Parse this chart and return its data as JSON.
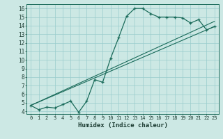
{
  "title": "",
  "xlabel": "Humidex (Indice chaleur)",
  "bg_color": "#cce8e4",
  "line_color": "#1a6b5a",
  "grid_color": "#99cccc",
  "xlim": [
    -0.5,
    23.5
  ],
  "ylim": [
    3.7,
    16.5
  ],
  "xticks": [
    0,
    1,
    2,
    3,
    4,
    5,
    6,
    7,
    8,
    9,
    10,
    11,
    12,
    13,
    14,
    15,
    16,
    17,
    18,
    19,
    20,
    21,
    22,
    23
  ],
  "yticks": [
    4,
    5,
    6,
    7,
    8,
    9,
    10,
    11,
    12,
    13,
    14,
    15,
    16
  ],
  "series1_x": [
    0,
    1,
    2,
    3,
    4,
    5,
    6,
    7,
    8,
    9,
    10,
    11,
    12,
    13,
    14,
    15,
    16,
    17,
    18,
    19,
    20,
    21,
    22,
    23
  ],
  "series1_y": [
    4.7,
    4.2,
    4.5,
    4.4,
    4.8,
    5.2,
    3.9,
    5.2,
    7.7,
    7.4,
    10.2,
    12.6,
    15.1,
    16.0,
    16.0,
    15.4,
    15.0,
    15.0,
    15.0,
    14.9,
    14.3,
    14.7,
    13.5,
    13.9
  ],
  "trend1_x": [
    0,
    23
  ],
  "trend1_y": [
    4.7,
    13.9
  ],
  "trend2_x": [
    0,
    23
  ],
  "trend2_y": [
    4.7,
    14.5
  ]
}
